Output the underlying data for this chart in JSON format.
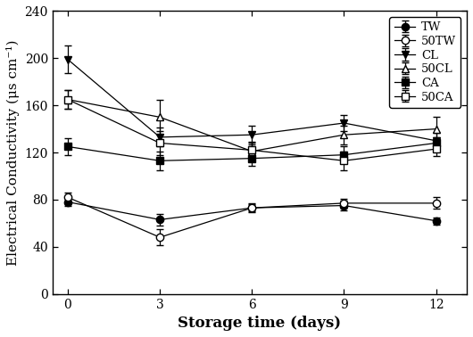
{
  "x": [
    0,
    3,
    6,
    9,
    12
  ],
  "series": [
    {
      "label": "TW",
      "marker": "o",
      "filled": true,
      "values": [
        78,
        63,
        73,
        75,
        62
      ],
      "errors": [
        3,
        5,
        4,
        4,
        3
      ]
    },
    {
      "label": "50TW",
      "marker": "o",
      "filled": false,
      "values": [
        82,
        48,
        73,
        77,
        77
      ],
      "errors": [
        4,
        7,
        3,
        4,
        5
      ]
    },
    {
      "label": "CL",
      "marker": "v",
      "filled": true,
      "values": [
        199,
        133,
        135,
        145,
        130
      ],
      "errors": [
        12,
        8,
        8,
        7,
        7
      ]
    },
    {
      "label": "50CL",
      "marker": "^",
      "filled": false,
      "values": [
        165,
        150,
        121,
        135,
        140
      ],
      "errors": [
        8,
        15,
        7,
        8,
        10
      ]
    },
    {
      "label": "CA",
      "marker": "s",
      "filled": true,
      "values": [
        125,
        113,
        115,
        118,
        128
      ],
      "errors": [
        7,
        8,
        6,
        7,
        5
      ]
    },
    {
      "label": "50CA",
      "marker": "s",
      "filled": false,
      "values": [
        165,
        128,
        122,
        113,
        123
      ],
      "errors": [
        8,
        10,
        7,
        8,
        6
      ]
    }
  ],
  "xlabel": "Storage time (days)",
  "ylabel": "Electrical Conductivity (μs cm⁻¹)",
  "xlim": [
    -0.5,
    13.0
  ],
  "ylim": [
    0,
    240
  ],
  "yticks": [
    0,
    40,
    80,
    120,
    160,
    200,
    240
  ],
  "xticks": [
    0,
    3,
    6,
    9,
    12
  ],
  "legend_loc": "upper right",
  "figsize": [
    5.3,
    3.78
  ],
  "dpi": 100
}
